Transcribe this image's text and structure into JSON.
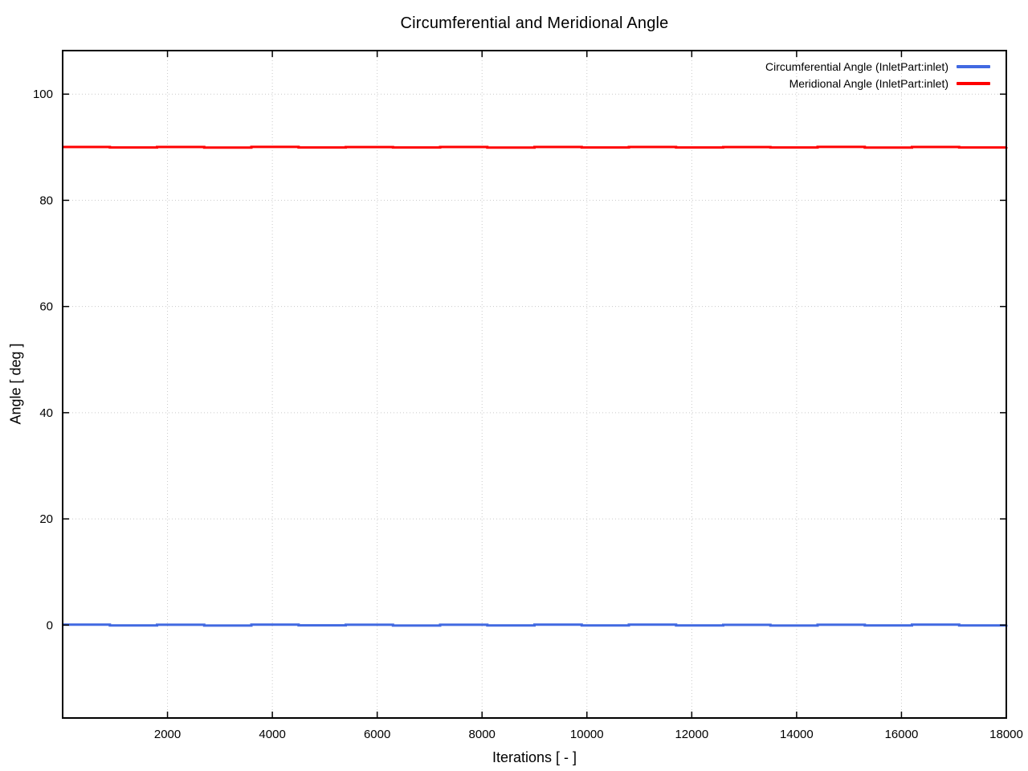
{
  "chart_data": {
    "type": "line",
    "title": "Circumferential and Meridional Angle",
    "xlabel": "Iterations [ - ]",
    "ylabel": "Angle [ deg ]",
    "xlim": [
      0,
      18000
    ],
    "ylim": [
      -17.5,
      108.2
    ],
    "x_ticks": [
      2000,
      4000,
      6000,
      8000,
      10000,
      12000,
      14000,
      16000,
      18000
    ],
    "y_ticks": [
      0,
      20,
      40,
      60,
      80,
      100
    ],
    "grid": "dotted",
    "grid_color": "#c9c9c9",
    "border_color": "#000000",
    "legend_position": "top-right-inside",
    "x": [
      0,
      900,
      1800,
      2700,
      3600,
      4500,
      5400,
      6300,
      7200,
      8100,
      9000,
      9900,
      10800,
      11700,
      12600,
      13500,
      14400,
      15300,
      16200,
      17100,
      18000
    ],
    "series": [
      {
        "name": "Circumferential Angle (InletPart:inlet)",
        "color": "#4169e1",
        "values": [
          0.08,
          -0.07,
          0.06,
          -0.08,
          0.09,
          -0.05,
          0.07,
          -0.08,
          0.06,
          -0.07,
          0.08,
          -0.06,
          0.09,
          -0.07,
          0.05,
          -0.08,
          0.07,
          -0.06,
          0.08,
          -0.07,
          0.06
        ]
      },
      {
        "name": "Meridional Angle (InletPart:inlet)",
        "color": "#ff0000",
        "values": [
          90.05,
          89.95,
          90.04,
          89.94,
          90.06,
          89.96,
          90.03,
          89.95,
          90.05,
          89.94,
          90.04,
          89.96,
          90.05,
          89.95,
          90.03,
          89.96,
          90.06,
          89.94,
          90.04,
          89.95,
          90.05
        ]
      }
    ]
  }
}
